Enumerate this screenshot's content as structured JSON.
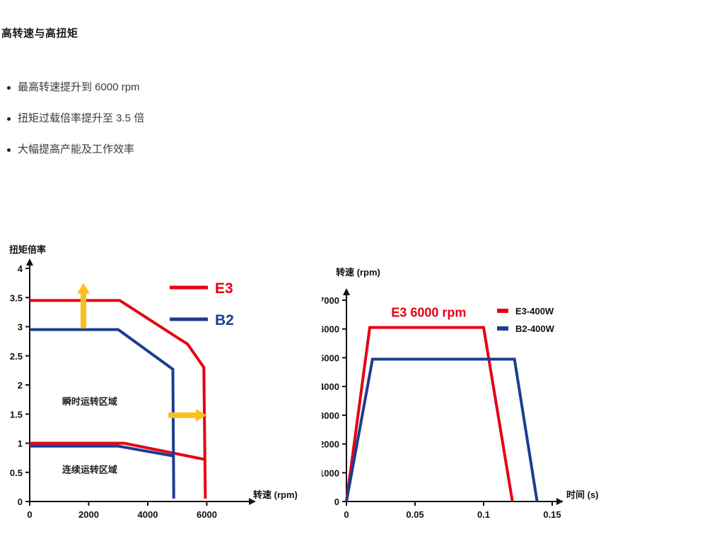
{
  "page": {
    "title": "高转速与高扭矩",
    "bullets": [
      "最高转速提升到 6000 rpm",
      "扭矩过载倍率提升至 3.5 倍",
      "大幅提高产能及工作效率"
    ]
  },
  "chart_data": [
    {
      "id": "torque-speed",
      "type": "line",
      "title": "",
      "xlabel": "转速 (rpm)",
      "ylabel": "扭矩倍率",
      "xlim": [
        0,
        7400
      ],
      "ylim": [
        0,
        4
      ],
      "xticks": [
        0,
        2000,
        4000,
        6000
      ],
      "yticks": [
        0,
        0.5,
        1,
        1.5,
        2,
        2.5,
        3,
        3.5,
        4
      ],
      "legend": [
        {
          "label": "E3",
          "color": "#e60012",
          "text_color": "#e60012"
        },
        {
          "label": "B2",
          "color": "#1d3c92",
          "text_color": "#1d3c92"
        }
      ],
      "series": [
        {
          "name": "E3-instantaneous",
          "color": "#e60012",
          "width": 4,
          "points": [
            [
              0,
              3.45
            ],
            [
              3050,
              3.45
            ],
            [
              5350,
              2.7
            ],
            [
              5900,
              2.3
            ],
            [
              5950,
              0.05
            ]
          ]
        },
        {
          "name": "E3-continuous",
          "color": "#e60012",
          "width": 4,
          "points": [
            [
              0,
              1.0
            ],
            [
              3200,
              1.0
            ],
            [
              5950,
              0.72
            ]
          ]
        },
        {
          "name": "B2-instantaneous",
          "color": "#1d3c92",
          "width": 4,
          "points": [
            [
              0,
              2.95
            ],
            [
              3000,
              2.95
            ],
            [
              4850,
              2.27
            ],
            [
              4880,
              0.05
            ]
          ]
        },
        {
          "name": "B2-continuous",
          "color": "#1d3c92",
          "width": 4,
          "points": [
            [
              0,
              0.95
            ],
            [
              3000,
              0.95
            ],
            [
              4880,
              0.78
            ]
          ]
        }
      ],
      "annotations": [
        {
          "text": "瞬时运转区域",
          "x": 1100,
          "y": 1.72,
          "anchor": "start",
          "size": 13,
          "color": "#222222",
          "weight": 600
        },
        {
          "text": "连续运转区域",
          "x": 1100,
          "y": 0.55,
          "anchor": "start",
          "size": 13,
          "color": "#222222",
          "weight": 600
        }
      ],
      "arrows": [
        {
          "dir": "up",
          "x": 1820,
          "from": 2.97,
          "to": 3.75,
          "color": "#fcc01e"
        },
        {
          "dir": "right",
          "y": 1.48,
          "from": 4700,
          "to": 5990,
          "color": "#fcc01e"
        }
      ]
    },
    {
      "id": "speed-time",
      "type": "line",
      "title": "",
      "xlabel": "时间 (s)",
      "ylabel": "转速 (rpm)",
      "xlim": [
        0,
        0.17
      ],
      "ylim": [
        0,
        7000
      ],
      "xticks": [
        0,
        0.05,
        0.1,
        0.15
      ],
      "yticks": [
        0,
        1000,
        2000,
        3000,
        4000,
        5000,
        6000,
        7000
      ],
      "legend": [
        {
          "label": "E3-400W",
          "color": "#e60012",
          "text_color": "#111111"
        },
        {
          "label": "B2-400W",
          "color": "#1d3c92",
          "text_color": "#111111"
        }
      ],
      "series": [
        {
          "name": "E3-400W",
          "color": "#e60012",
          "width": 4,
          "points": [
            [
              0,
              0
            ],
            [
              0.017,
              6050
            ],
            [
              0.1,
              6050
            ],
            [
              0.121,
              0
            ]
          ]
        },
        {
          "name": "B2-400W",
          "color": "#1d3c92",
          "width": 4,
          "points": [
            [
              0,
              0
            ],
            [
              0.019,
              4950
            ],
            [
              0.1225,
              4950
            ],
            [
              0.139,
              0
            ]
          ]
        }
      ],
      "annotations": [
        {
          "text": "E3 6000 rpm",
          "x": 0.06,
          "y": 6550,
          "anchor": "middle",
          "size": 18,
          "color": "#e60012",
          "weight": 700
        }
      ],
      "arrows": []
    }
  ]
}
